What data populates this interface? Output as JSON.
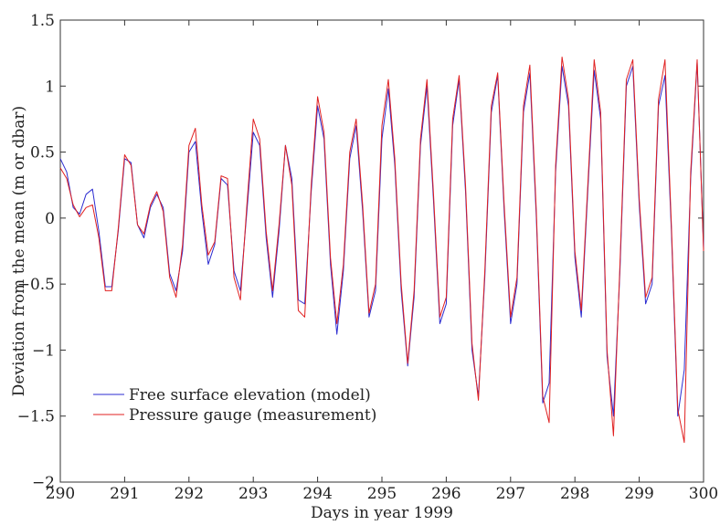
{
  "chart_data": {
    "type": "line",
    "title": "",
    "xlabel": "Days in year 1999",
    "ylabel": "Deviation from the mean (m or dbar)",
    "xlim": [
      290,
      300
    ],
    "ylim": [
      -2,
      1.5
    ],
    "xticks": [
      290,
      291,
      292,
      293,
      294,
      295,
      296,
      297,
      298,
      299,
      300
    ],
    "yticks": [
      -2,
      -1.5,
      -1,
      -0.5,
      0,
      0.5,
      1,
      1.5
    ],
    "ytick_labels": [
      "−2",
      "−1.5",
      "−1",
      "−0.5",
      "0",
      "0.5",
      "1",
      "1.5"
    ],
    "grid": false,
    "legend_position": "bottom-left",
    "series": [
      {
        "name": "Free surface elevation (model)",
        "color": "#2b2bd0",
        "x": [
          290.0,
          290.1,
          290.2,
          290.3,
          290.4,
          290.5,
          290.6,
          290.7,
          290.8,
          290.9,
          291.0,
          291.1,
          291.2,
          291.3,
          291.4,
          291.5,
          291.6,
          291.7,
          291.8,
          291.9,
          292.0,
          292.1,
          292.2,
          292.3,
          292.4,
          292.5,
          292.6,
          292.7,
          292.8,
          292.9,
          293.0,
          293.1,
          293.2,
          293.3,
          293.4,
          293.5,
          293.6,
          293.7,
          293.8,
          293.9,
          294.0,
          294.1,
          294.2,
          294.3,
          294.4,
          294.5,
          294.6,
          294.7,
          294.8,
          294.9,
          295.0,
          295.1,
          295.2,
          295.3,
          295.4,
          295.5,
          295.6,
          295.7,
          295.8,
          295.9,
          296.0,
          296.1,
          296.2,
          296.3,
          296.4,
          296.5,
          296.6,
          296.7,
          296.8,
          296.9,
          297.0,
          297.1,
          297.2,
          297.3,
          297.4,
          297.5,
          297.6,
          297.7,
          297.8,
          297.9,
          298.0,
          298.1,
          298.2,
          298.3,
          298.4,
          298.5,
          298.6,
          298.7,
          298.8,
          298.9,
          299.0,
          299.1,
          299.2,
          299.3,
          299.4,
          299.5,
          299.6,
          299.7,
          299.8,
          299.9,
          300.0
        ],
        "y": [
          0.45,
          0.35,
          0.08,
          0.03,
          0.18,
          0.22,
          -0.1,
          -0.52,
          -0.52,
          -0.1,
          0.45,
          0.42,
          -0.05,
          -0.15,
          0.08,
          0.18,
          0.08,
          -0.42,
          -0.55,
          -0.25,
          0.5,
          0.58,
          0.05,
          -0.35,
          -0.2,
          0.3,
          0.25,
          -0.4,
          -0.55,
          0.05,
          0.65,
          0.55,
          -0.15,
          -0.6,
          -0.1,
          0.55,
          0.3,
          -0.62,
          -0.65,
          0.2,
          0.85,
          0.6,
          -0.35,
          -0.88,
          -0.4,
          0.45,
          0.7,
          0.05,
          -0.75,
          -0.55,
          0.6,
          0.98,
          0.4,
          -0.55,
          -1.12,
          -0.6,
          0.55,
          1.0,
          0.15,
          -0.8,
          -0.65,
          0.7,
          1.05,
          0.2,
          -1.0,
          -1.35,
          -0.45,
          0.8,
          1.08,
          0.05,
          -0.8,
          -0.5,
          0.8,
          1.1,
          0.0,
          -1.4,
          -1.25,
          0.35,
          1.15,
          0.85,
          -0.3,
          -0.75,
          0.2,
          1.12,
          0.75,
          -1.05,
          -1.5,
          -0.4,
          1.0,
          1.15,
          0.1,
          -0.65,
          -0.5,
          0.85,
          1.08,
          -0.1,
          -1.5,
          -1.15,
          0.3,
          1.18,
          -0.22
        ]
      },
      {
        "name": "Pressure gauge (measurement)",
        "color": "#e02020",
        "x": [
          290.0,
          290.1,
          290.2,
          290.3,
          290.4,
          290.5,
          290.6,
          290.7,
          290.8,
          290.9,
          291.0,
          291.1,
          291.2,
          291.3,
          291.4,
          291.5,
          291.6,
          291.7,
          291.8,
          291.9,
          292.0,
          292.1,
          292.2,
          292.3,
          292.4,
          292.5,
          292.6,
          292.7,
          292.8,
          292.9,
          293.0,
          293.1,
          293.2,
          293.3,
          293.4,
          293.5,
          293.6,
          293.7,
          293.8,
          293.9,
          294.0,
          294.1,
          294.2,
          294.3,
          294.4,
          294.5,
          294.6,
          294.7,
          294.8,
          294.9,
          295.0,
          295.1,
          295.2,
          295.3,
          295.4,
          295.5,
          295.6,
          295.7,
          295.8,
          295.9,
          296.0,
          296.1,
          296.2,
          296.3,
          296.4,
          296.5,
          296.6,
          296.7,
          296.8,
          296.9,
          297.0,
          297.1,
          297.2,
          297.3,
          297.4,
          297.5,
          297.6,
          297.7,
          297.8,
          297.9,
          298.0,
          298.1,
          298.2,
          298.3,
          298.4,
          298.5,
          298.6,
          298.7,
          298.8,
          298.9,
          299.0,
          299.1,
          299.2,
          299.3,
          299.4,
          299.5,
          299.6,
          299.7,
          299.8,
          299.9,
          300.0
        ],
        "y": [
          0.38,
          0.3,
          0.1,
          0.01,
          0.08,
          0.1,
          -0.15,
          -0.55,
          -0.55,
          -0.08,
          0.48,
          0.4,
          -0.05,
          -0.12,
          0.1,
          0.2,
          0.05,
          -0.45,
          -0.6,
          -0.2,
          0.55,
          0.68,
          0.1,
          -0.28,
          -0.18,
          0.32,
          0.3,
          -0.45,
          -0.62,
          0.1,
          0.75,
          0.6,
          -0.1,
          -0.55,
          -0.05,
          0.55,
          0.25,
          -0.7,
          -0.75,
          0.25,
          0.92,
          0.65,
          -0.3,
          -0.8,
          -0.35,
          0.5,
          0.75,
          0.1,
          -0.72,
          -0.5,
          0.7,
          1.05,
          0.45,
          -0.5,
          -1.1,
          -0.55,
          0.6,
          1.05,
          0.2,
          -0.75,
          -0.6,
          0.75,
          1.08,
          0.25,
          -0.95,
          -1.38,
          -0.4,
          0.85,
          1.1,
          0.1,
          -0.75,
          -0.45,
          0.85,
          1.16,
          0.05,
          -1.35,
          -1.55,
          0.4,
          1.22,
          0.9,
          -0.25,
          -0.7,
          0.25,
          1.2,
          0.8,
          -1.0,
          -1.65,
          -0.35,
          1.05,
          1.2,
          0.15,
          -0.6,
          -0.45,
          0.9,
          1.2,
          -0.05,
          -1.45,
          -1.7,
          0.35,
          1.2,
          -0.25
        ]
      }
    ]
  }
}
